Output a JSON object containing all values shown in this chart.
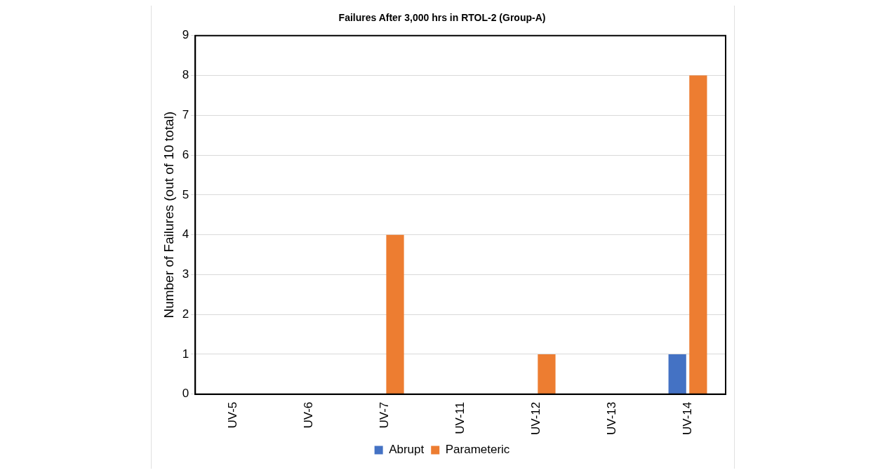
{
  "chart_data": {
    "type": "bar",
    "title": "Failures After 3,000 hrs in RTOL-2 (Group-A)",
    "ylabel": "Number of Failures (out of 10 total)",
    "categories": [
      "UV-5",
      "UV-6",
      "UV-7",
      "UV-11",
      "UV-12",
      "UV-13",
      "UV-14"
    ],
    "series": [
      {
        "name": "Abrupt",
        "color": "#4472c4",
        "values": [
          0,
          0,
          0,
          0,
          0,
          0,
          1
        ]
      },
      {
        "name": "Parameteric",
        "color": "#ed7d31",
        "values": [
          0,
          0,
          4,
          0,
          1,
          0,
          8
        ]
      }
    ],
    "ylim": [
      0,
      9
    ],
    "yticks": [
      0,
      1,
      2,
      3,
      4,
      5,
      6,
      7,
      8,
      9
    ],
    "grid": "y",
    "legend": "bottom"
  }
}
